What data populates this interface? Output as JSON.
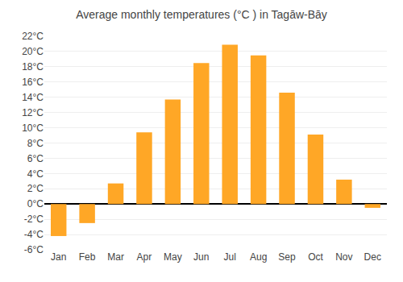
{
  "chart_data": {
    "type": "bar",
    "title": "Average monthly temperatures (°C ) in Tagāw-Bāy",
    "categories": [
      "Jan",
      "Feb",
      "Mar",
      "Apr",
      "May",
      "Jun",
      "Jul",
      "Aug",
      "Sep",
      "Oct",
      "Nov",
      "Dec"
    ],
    "values": [
      -4.2,
      -2.5,
      2.7,
      9.4,
      13.7,
      18.5,
      20.9,
      19.5,
      14.6,
      9.1,
      3.2,
      -0.5
    ],
    "color": "#FFA726",
    "ylim": [
      -6,
      22
    ],
    "yticks": [
      {
        "value": -6,
        "label": "-6°C"
      },
      {
        "value": -4,
        "label": "-4°C"
      },
      {
        "value": -2,
        "label": "-2°C"
      },
      {
        "value": 0,
        "label": "0°C"
      },
      {
        "value": 2,
        "label": "2°C"
      },
      {
        "value": 4,
        "label": "4°C"
      },
      {
        "value": 6,
        "label": "6°C"
      },
      {
        "value": 8,
        "label": "8°C"
      },
      {
        "value": 10,
        "label": "10°C"
      },
      {
        "value": 12,
        "label": "12°C"
      },
      {
        "value": 14,
        "label": "14°C"
      },
      {
        "value": 16,
        "label": "16°C"
      },
      {
        "value": 18,
        "label": "18°C"
      },
      {
        "value": 20,
        "label": "20°C"
      },
      {
        "value": 22,
        "label": "22°C"
      }
    ],
    "grid": true
  }
}
